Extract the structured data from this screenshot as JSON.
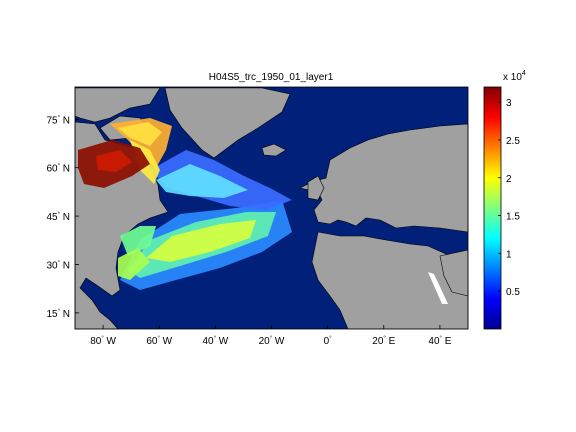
{
  "figure": {
    "title": "H04S5_trc_1950_01_layer1"
  },
  "map": {
    "lat_ticks": [
      {
        "label": "15",
        "hemi": "N",
        "value": 15
      },
      {
        "label": "30",
        "hemi": "N",
        "value": 30
      },
      {
        "label": "45",
        "hemi": "N",
        "value": 45
      },
      {
        "label": "60",
        "hemi": "N",
        "value": 60
      },
      {
        "label": "75",
        "hemi": "N",
        "value": 75
      }
    ],
    "lon_ticks": [
      {
        "label": "80",
        "hemi": "W",
        "value": -80
      },
      {
        "label": "60",
        "hemi": "W",
        "value": -60
      },
      {
        "label": "40",
        "hemi": "W",
        "value": -40
      },
      {
        "label": "20",
        "hemi": "W",
        "value": -20
      },
      {
        "label": "0",
        "hemi": "",
        "value": 0
      },
      {
        "label": "20",
        "hemi": "E",
        "value": 20
      },
      {
        "label": "40",
        "hemi": "E",
        "value": 40
      }
    ],
    "lon_range": [
      -90,
      50
    ],
    "lat_range": [
      10,
      85
    ],
    "colors": {
      "ocean_background": "#00207a",
      "land": "#a0a0a0",
      "coastline": "#000000"
    }
  },
  "colorbar": {
    "exponent_prefix": "x 10",
    "exponent_power": "4",
    "ticks": [
      {
        "label": "0.5",
        "value": 0.5
      },
      {
        "label": "1",
        "value": 1
      },
      {
        "label": "1.5",
        "value": 1.5
      },
      {
        "label": "2",
        "value": 2
      },
      {
        "label": "2.5",
        "value": 2.5
      },
      {
        "label": "3",
        "value": 3
      }
    ],
    "range": [
      0,
      3.2
    ],
    "colormap": "jet"
  }
}
